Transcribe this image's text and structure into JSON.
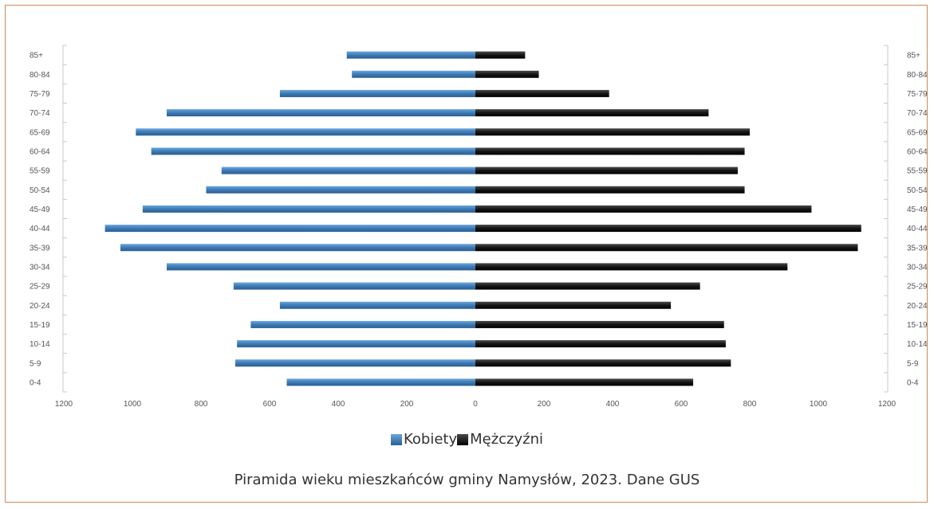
{
  "chart_data": {
    "type": "bar",
    "orientation": "horizontal-population-pyramid",
    "title": "Piramida wieku mieszkańców gminy Namysłów, 2023. Dane GUS",
    "categories": [
      "85+",
      "80-84",
      "75-79",
      "70-74",
      "65-69",
      "60-64",
      "55-59",
      "50-54",
      "45-49",
      "40-44",
      "35-39",
      "30-34",
      "25-29",
      "20-24",
      "15-19",
      "10-14",
      "5-9",
      "0-4"
    ],
    "series": [
      {
        "name": "Kobiety",
        "color": "#3d79b4",
        "values": [
          375,
          360,
          570,
          900,
          990,
          945,
          740,
          785,
          970,
          1080,
          1035,
          900,
          705,
          570,
          655,
          695,
          700,
          550
        ]
      },
      {
        "name": "Mężczyźni",
        "color": "#1a1a1a",
        "values": [
          145,
          185,
          390,
          680,
          800,
          785,
          765,
          785,
          980,
          1125,
          1115,
          910,
          655,
          570,
          725,
          730,
          745,
          635
        ]
      }
    ],
    "xlim": [
      -1200,
      1200
    ],
    "x_ticks": [
      {
        "value": -1200,
        "label": "1200"
      },
      {
        "value": -1000,
        "label": "1000"
      },
      {
        "value": -800,
        "label": "800"
      },
      {
        "value": -600,
        "label": "600"
      },
      {
        "value": -400,
        "label": "400"
      },
      {
        "value": -200,
        "label": "200"
      },
      {
        "value": 0,
        "label": "0"
      },
      {
        "value": 200,
        "label": "200"
      },
      {
        "value": 400,
        "label": "400"
      },
      {
        "value": 600,
        "label": "600"
      },
      {
        "value": 800,
        "label": "800"
      },
      {
        "value": 1000,
        "label": "1000"
      },
      {
        "value": 1200,
        "label": "1200"
      }
    ],
    "grid": false,
    "legend_position": "bottom-center",
    "legend_labels": [
      "Kobiety",
      "Mężczyźni"
    ]
  },
  "colors": {
    "frame_border": "#d08a5a",
    "female_bar": "#3d79b4",
    "male_bar": "#1a1a1a"
  }
}
